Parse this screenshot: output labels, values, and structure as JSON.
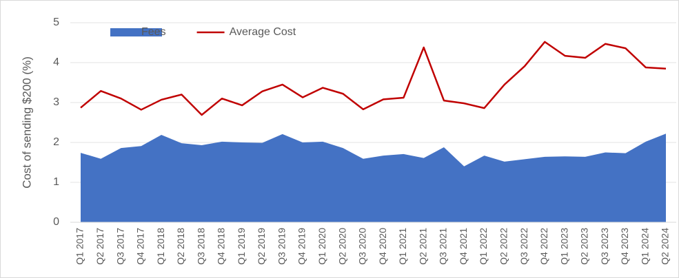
{
  "chart_data": {
    "type": "area",
    "y_label": "Cost of sending $200 (%)",
    "categories": [
      "Q1 2017",
      "Q2 2017",
      "Q3 2017",
      "Q4 2017",
      "Q1 2018",
      "Q2 2018",
      "Q3 2018",
      "Q4 2018",
      "Q1 2019",
      "Q2 2019",
      "Q3 2019",
      "Q4 2019",
      "Q1 2020",
      "Q2 2020",
      "Q3 2020",
      "Q4 2020",
      "Q1 2021",
      "Q2 2021",
      "Q3 2021",
      "Q4 2021",
      "Q1 2022",
      "Q2 2022",
      "Q3 2022",
      "Q4 2022",
      "Q1 2023",
      "Q2 2023",
      "Q3 2023",
      "Q4 2023",
      "Q1 2024",
      "Q2 2024"
    ],
    "series": [
      {
        "name": "Fees",
        "type": "area",
        "color": "#4472c4",
        "values": [
          1.74,
          1.59,
          1.86,
          1.91,
          2.19,
          1.98,
          1.93,
          2.02,
          2.0,
          1.99,
          2.21,
          2.0,
          2.02,
          1.86,
          1.59,
          1.67,
          1.71,
          1.61,
          1.88,
          1.4,
          1.67,
          1.52,
          1.58,
          1.64,
          1.65,
          1.64,
          1.75,
          1.73,
          2.02,
          2.22
        ]
      },
      {
        "name": "Average Cost",
        "type": "line",
        "color": "#c00000",
        "values": [
          2.87,
          3.29,
          3.1,
          2.82,
          3.07,
          3.2,
          2.69,
          3.1,
          2.93,
          3.28,
          3.45,
          3.13,
          3.37,
          3.22,
          2.83,
          3.08,
          3.12,
          4.38,
          3.05,
          2.98,
          2.86,
          3.45,
          3.91,
          4.52,
          4.17,
          4.12,
          4.47,
          4.36,
          3.88,
          3.85
        ]
      }
    ],
    "ylim": [
      0,
      5
    ],
    "yticks": [
      0,
      1,
      2,
      3,
      4,
      5
    ],
    "grid": true,
    "legend": "top-left"
  }
}
